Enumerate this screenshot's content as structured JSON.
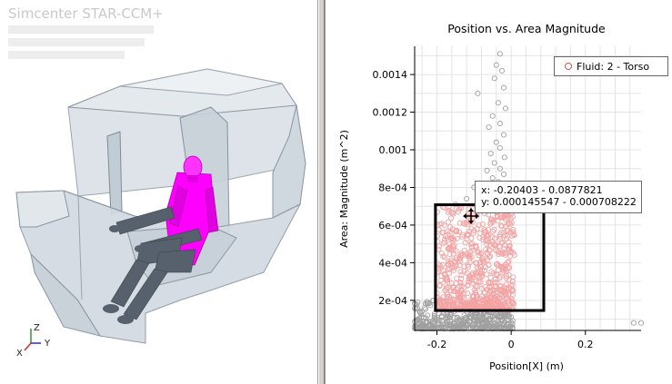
{
  "app": {
    "brand": "Simcenter STAR-CCM+"
  },
  "triad": {
    "z": "Z",
    "y": "Y",
    "x": "X"
  },
  "plot": {
    "tooltip_x": "x: -0.20403 - 0.0877821",
    "tooltip_y": "y: 0.000145547 - 0.000708222",
    "legend_label": "Fluid: 2 - Torso"
  },
  "colors": {
    "marker": "#e05050",
    "selected_fill": "#f4a2a2",
    "grey_points": "#a0a0a0",
    "mannequin": "#ff00ff",
    "limbs": "#56616d"
  },
  "chart_data": {
    "type": "scatter",
    "title": "Position vs. Area Magnitude",
    "xlabel": "Position[X] (m)",
    "ylabel": "Area: Magnitude (m^2)",
    "xlim": [
      -0.26,
      0.35
    ],
    "ylim": [
      4e-05,
      0.00155
    ],
    "x_ticks": [
      -0.2,
      0,
      0.2
    ],
    "x_tick_labels": [
      "-0.2",
      "0",
      "0.2"
    ],
    "y_ticks": [
      0.0002,
      0.0004,
      0.0006,
      0.0008,
      0.001,
      0.0012,
      0.0014
    ],
    "y_tick_labels": [
      "2e-04",
      "4e-04",
      "6e-04",
      "8e-04",
      "0.001",
      "0.0012",
      "0.0014"
    ],
    "series": [
      {
        "name": "Fluid: 2 - Torso",
        "points": [
          [
            -0.03,
            0.00151
          ],
          [
            -0.04,
            0.00145
          ],
          [
            -0.025,
            0.00142
          ],
          [
            -0.045,
            0.00138
          ],
          [
            -0.02,
            0.00133
          ],
          [
            -0.09,
            0.0013
          ],
          [
            -0.035,
            0.00125
          ],
          [
            -0.015,
            0.00122
          ],
          [
            -0.05,
            0.00118
          ],
          [
            -0.03,
            0.00114
          ],
          [
            -0.06,
            0.00112
          ],
          [
            -0.02,
            0.00108
          ],
          [
            -0.04,
            0.00104
          ],
          [
            -0.03,
            0.00101
          ],
          [
            -0.055,
            0.00098
          ],
          [
            -0.018,
            0.00096
          ],
          [
            -0.045,
            0.00093
          ],
          [
            -0.03,
            0.0009
          ],
          [
            -0.065,
            0.00089
          ],
          [
            -0.02,
            0.00087
          ],
          [
            -0.05,
            0.00085
          ],
          [
            -0.035,
            0.00083
          ],
          [
            -0.08,
            0.00082
          ],
          [
            -0.025,
            0.00081
          ],
          [
            -0.1,
            0.0008
          ],
          [
            -0.05,
            0.00078
          ],
          [
            -0.03,
            0.00077
          ],
          [
            -0.07,
            0.00076
          ],
          [
            -0.04,
            0.00075
          ],
          [
            -0.12,
            0.00074
          ],
          [
            -0.06,
            0.00073
          ],
          [
            -0.02,
            0.00073
          ],
          [
            -0.09,
            0.00072
          ],
          [
            -0.15,
            0.00071
          ],
          [
            -0.035,
            0.00071
          ],
          [
            0.35,
            8e-05
          ],
          [
            0.33,
            8e-05
          ]
        ]
      }
    ],
    "selection_box": {
      "x": [
        -0.204,
        0.0878
      ],
      "y": [
        0.000146,
        0.000708
      ]
    }
  }
}
